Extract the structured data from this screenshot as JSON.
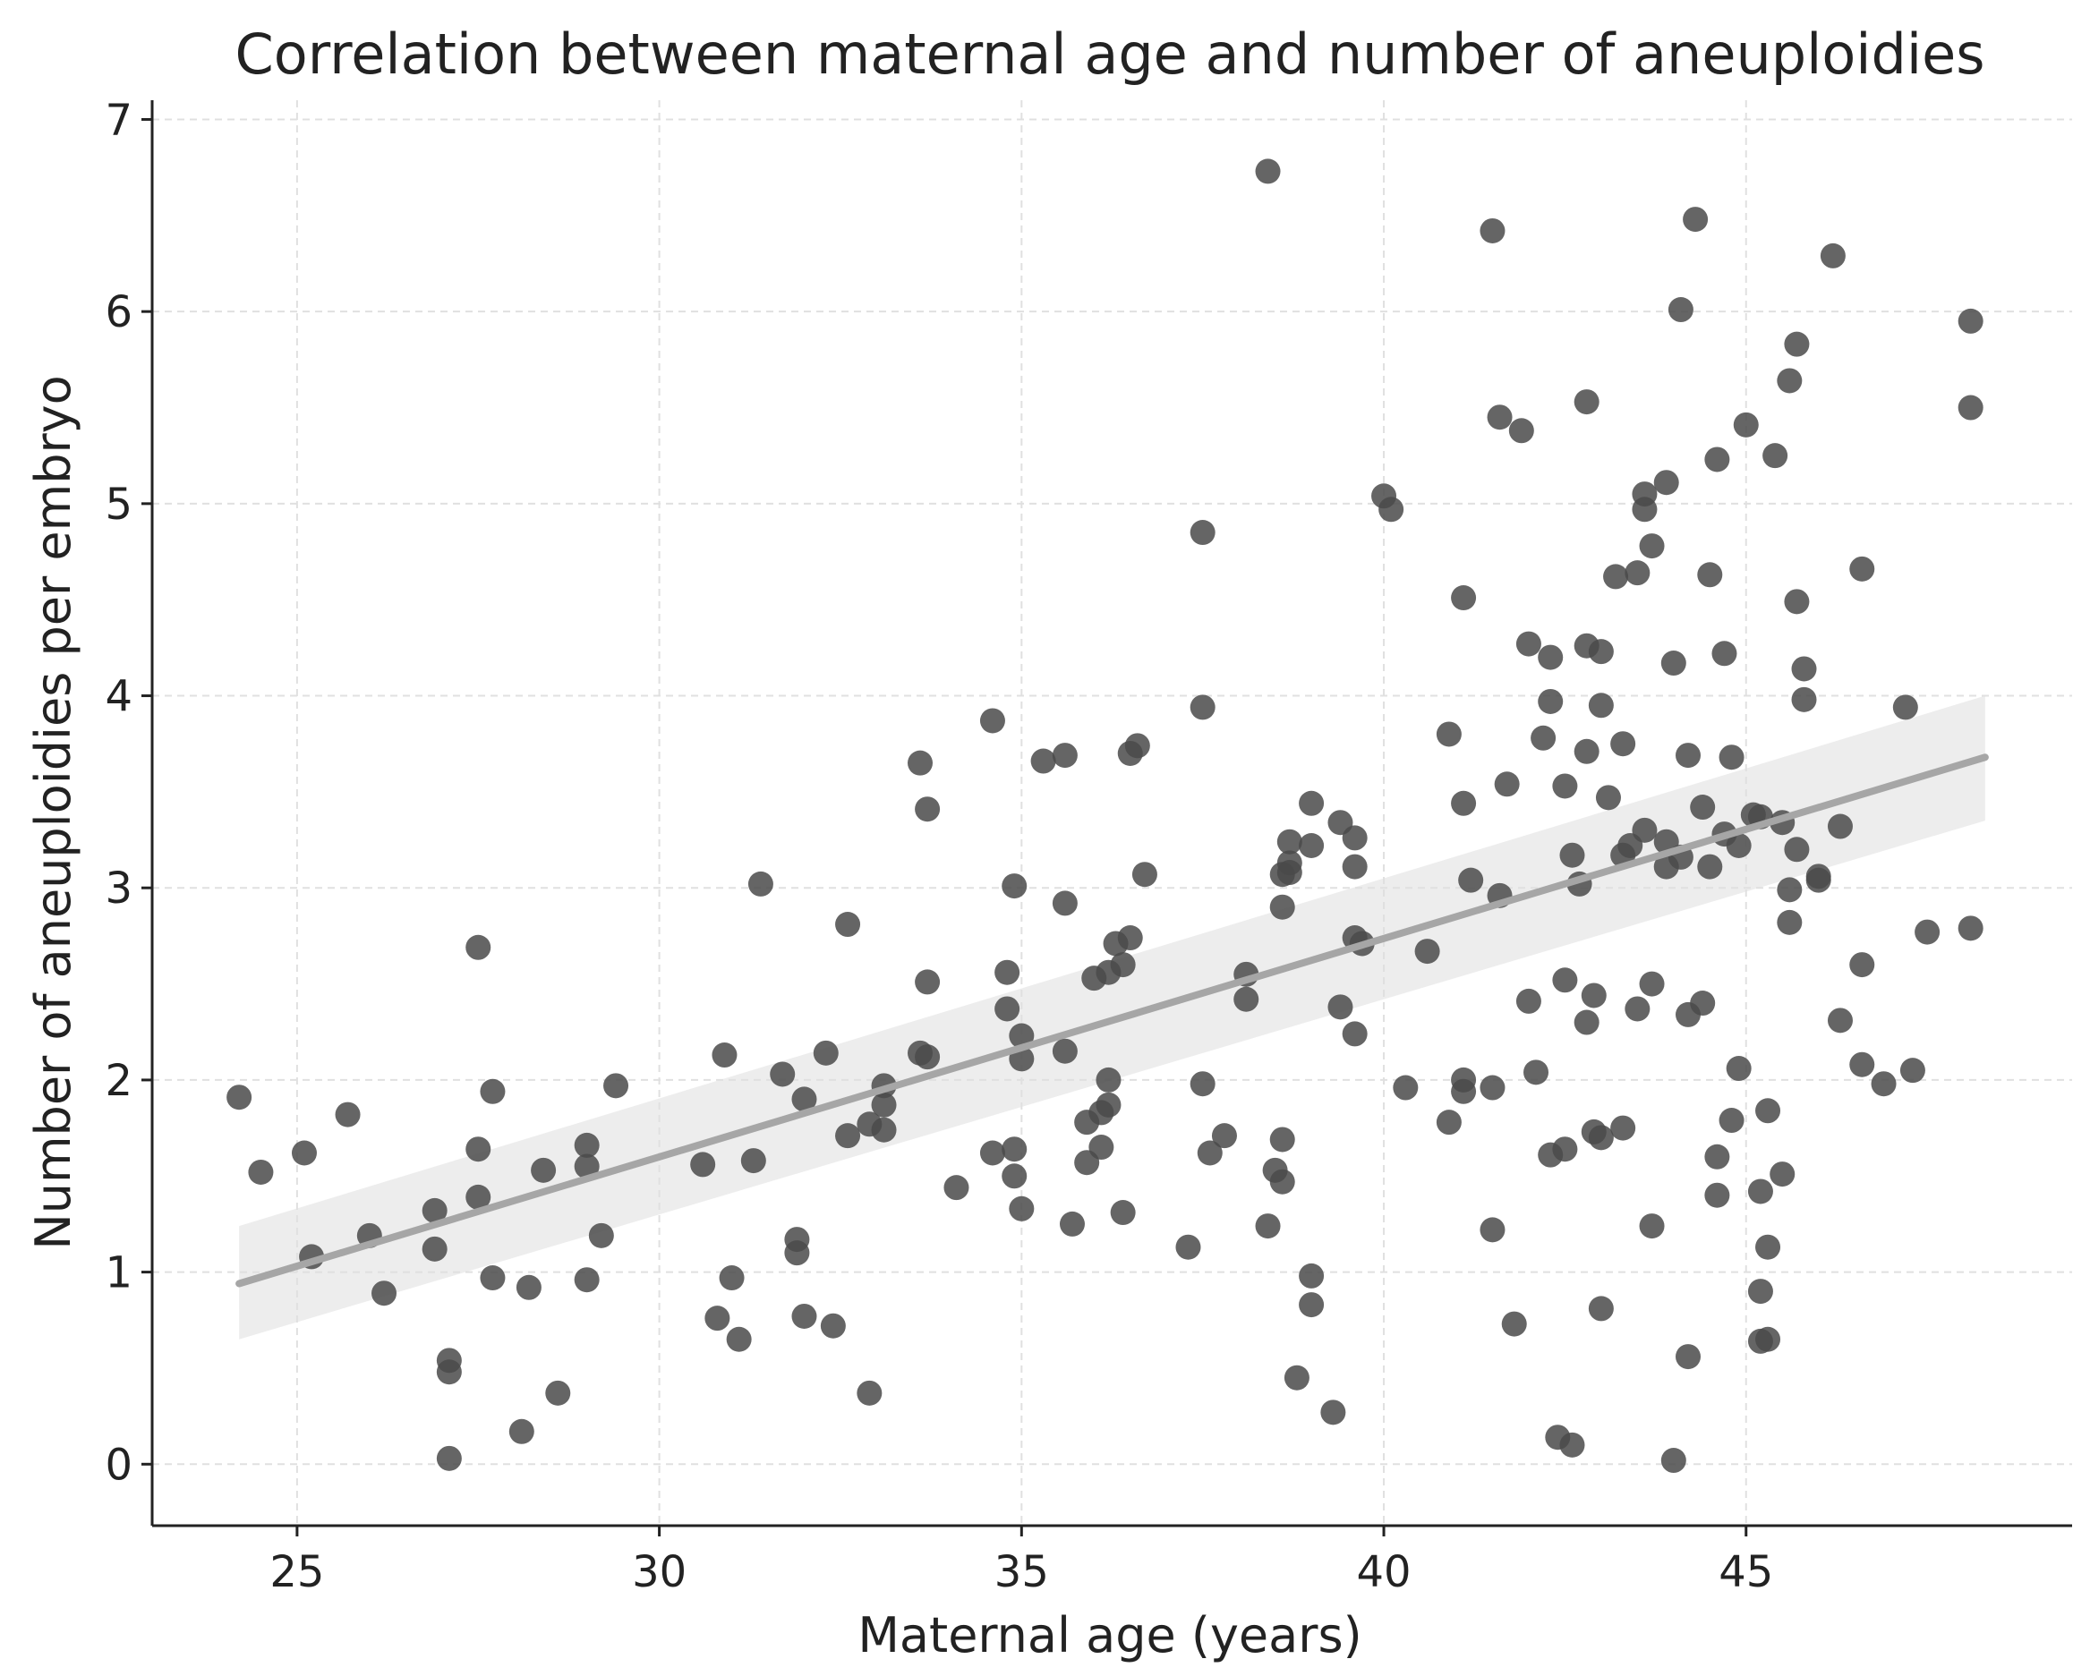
{
  "chart_data": {
    "type": "scatter",
    "title": "Correlation between maternal age and number of aneuploidies",
    "xlabel": "Maternal age (years)",
    "ylabel": "Number of aneuploidies per embryo",
    "xlim": [
      23,
      49.5
    ],
    "ylim": [
      -0.32,
      7.1
    ],
    "xticks": [
      25,
      30,
      35,
      40,
      45
    ],
    "yticks": [
      0,
      1,
      2,
      3,
      4,
      5,
      6,
      7
    ],
    "grid": true,
    "colors": {
      "points": "#4a4a4a",
      "regression_line": "#a6a6a6",
      "confidence_band": "#e6e6e6",
      "grid": "#e0e0e0",
      "axis": "#222222"
    },
    "regression": {
      "x": [
        24.2,
        48.3
      ],
      "y": [
        0.94,
        3.68
      ],
      "ci_lower": [
        0.65,
        3.35
      ],
      "ci_upper": [
        1.24,
        4.0
      ]
    },
    "points": [
      [
        24.2,
        1.91
      ],
      [
        24.5,
        1.52
      ],
      [
        25.1,
        1.62
      ],
      [
        25.2,
        1.08
      ],
      [
        25.7,
        1.82
      ],
      [
        26.0,
        1.19
      ],
      [
        26.2,
        0.89
      ],
      [
        26.9,
        1.32
      ],
      [
        26.9,
        1.12
      ],
      [
        27.1,
        0.54
      ],
      [
        27.1,
        0.48
      ],
      [
        27.1,
        0.03
      ],
      [
        27.5,
        2.69
      ],
      [
        27.5,
        1.64
      ],
      [
        27.5,
        1.39
      ],
      [
        27.7,
        1.94
      ],
      [
        27.7,
        0.97
      ],
      [
        28.2,
        0.92
      ],
      [
        28.1,
        0.17
      ],
      [
        28.4,
        1.53
      ],
      [
        28.6,
        0.37
      ],
      [
        29.0,
        1.66
      ],
      [
        29.0,
        1.55
      ],
      [
        29.0,
        0.96
      ],
      [
        29.2,
        1.19
      ],
      [
        29.4,
        1.97
      ],
      [
        30.6,
        1.56
      ],
      [
        30.8,
        0.76
      ],
      [
        30.9,
        2.13
      ],
      [
        31.0,
        0.97
      ],
      [
        31.1,
        0.65
      ],
      [
        31.3,
        1.58
      ],
      [
        31.4,
        3.02
      ],
      [
        31.7,
        2.03
      ],
      [
        31.9,
        1.17
      ],
      [
        31.9,
        1.1
      ],
      [
        32.0,
        1.9
      ],
      [
        32.0,
        0.77
      ],
      [
        32.3,
        2.14
      ],
      [
        32.4,
        0.72
      ],
      [
        32.6,
        2.81
      ],
      [
        32.6,
        1.71
      ],
      [
        32.9,
        1.77
      ],
      [
        32.9,
        0.37
      ],
      [
        33.1,
        1.97
      ],
      [
        33.1,
        1.87
      ],
      [
        33.1,
        1.74
      ],
      [
        33.6,
        3.65
      ],
      [
        33.7,
        3.41
      ],
      [
        33.7,
        2.51
      ],
      [
        33.6,
        2.14
      ],
      [
        33.7,
        2.12
      ],
      [
        34.1,
        1.44
      ],
      [
        34.6,
        3.87
      ],
      [
        34.6,
        1.62
      ],
      [
        34.8,
        2.56
      ],
      [
        34.8,
        2.37
      ],
      [
        34.9,
        3.01
      ],
      [
        34.9,
        1.64
      ],
      [
        34.9,
        1.5
      ],
      [
        35.0,
        2.23
      ],
      [
        35.0,
        2.11
      ],
      [
        35.0,
        1.33
      ],
      [
        35.3,
        3.66
      ],
      [
        35.6,
        3.69
      ],
      [
        35.6,
        2.92
      ],
      [
        35.6,
        2.15
      ],
      [
        35.7,
        1.25
      ],
      [
        35.9,
        1.78
      ],
      [
        35.9,
        1.57
      ],
      [
        36.0,
        2.53
      ],
      [
        36.1,
        1.65
      ],
      [
        36.1,
        1.83
      ],
      [
        36.2,
        1.87
      ],
      [
        36.2,
        2.0
      ],
      [
        36.2,
        2.56
      ],
      [
        36.3,
        2.71
      ],
      [
        36.4,
        2.6
      ],
      [
        36.4,
        1.31
      ],
      [
        36.5,
        2.74
      ],
      [
        36.5,
        3.7
      ],
      [
        36.6,
        3.74
      ],
      [
        36.7,
        3.07
      ],
      [
        37.3,
        1.13
      ],
      [
        37.5,
        4.85
      ],
      [
        37.5,
        3.94
      ],
      [
        37.5,
        1.98
      ],
      [
        37.6,
        1.62
      ],
      [
        37.8,
        1.71
      ],
      [
        38.1,
        2.55
      ],
      [
        38.1,
        2.42
      ],
      [
        38.4,
        1.24
      ],
      [
        38.4,
        6.73
      ],
      [
        38.5,
        1.53
      ],
      [
        38.6,
        3.07
      ],
      [
        38.6,
        2.9
      ],
      [
        38.6,
        1.69
      ],
      [
        38.6,
        1.47
      ],
      [
        38.7,
        3.13
      ],
      [
        38.7,
        3.08
      ],
      [
        38.7,
        3.24
      ],
      [
        38.8,
        0.45
      ],
      [
        39.0,
        3.22
      ],
      [
        39.0,
        3.44
      ],
      [
        39.0,
        0.83
      ],
      [
        39.0,
        0.98
      ],
      [
        39.3,
        0.27
      ],
      [
        39.4,
        3.34
      ],
      [
        39.4,
        2.38
      ],
      [
        39.6,
        2.24
      ],
      [
        39.6,
        3.11
      ],
      [
        39.6,
        3.26
      ],
      [
        39.6,
        2.74
      ],
      [
        39.7,
        2.71
      ],
      [
        40.0,
        5.04
      ],
      [
        40.1,
        4.97
      ],
      [
        40.3,
        1.96
      ],
      [
        40.6,
        2.67
      ],
      [
        40.9,
        1.78
      ],
      [
        40.9,
        3.8
      ],
      [
        41.1,
        4.51
      ],
      [
        41.1,
        3.44
      ],
      [
        41.2,
        3.04
      ],
      [
        41.1,
        2.0
      ],
      [
        41.1,
        1.94
      ],
      [
        41.5,
        6.42
      ],
      [
        41.5,
        1.96
      ],
      [
        41.5,
        1.22
      ],
      [
        41.6,
        5.45
      ],
      [
        41.6,
        2.96
      ],
      [
        41.7,
        3.54
      ],
      [
        41.8,
        0.73
      ],
      [
        41.9,
        5.38
      ],
      [
        42.0,
        4.27
      ],
      [
        42.0,
        2.41
      ],
      [
        42.1,
        2.04
      ],
      [
        42.2,
        3.78
      ],
      [
        42.3,
        4.2
      ],
      [
        42.3,
        3.97
      ],
      [
        42.3,
        1.61
      ],
      [
        42.4,
        0.14
      ],
      [
        42.5,
        3.53
      ],
      [
        42.5,
        2.52
      ],
      [
        42.5,
        1.64
      ],
      [
        42.6,
        3.17
      ],
      [
        42.6,
        0.1
      ],
      [
        42.7,
        3.02
      ],
      [
        42.8,
        5.53
      ],
      [
        42.8,
        3.71
      ],
      [
        42.8,
        2.3
      ],
      [
        42.8,
        4.26
      ],
      [
        42.9,
        2.44
      ],
      [
        42.9,
        1.73
      ],
      [
        43.0,
        4.23
      ],
      [
        43.0,
        3.95
      ],
      [
        43.0,
        1.7
      ],
      [
        43.0,
        0.81
      ],
      [
        43.1,
        3.47
      ],
      [
        43.2,
        4.62
      ],
      [
        43.3,
        3.17
      ],
      [
        43.3,
        3.75
      ],
      [
        43.3,
        1.75
      ],
      [
        43.4,
        3.22
      ],
      [
        43.5,
        4.64
      ],
      [
        43.5,
        2.37
      ],
      [
        43.6,
        5.05
      ],
      [
        43.6,
        4.97
      ],
      [
        43.6,
        3.3
      ],
      [
        43.7,
        4.78
      ],
      [
        43.7,
        2.5
      ],
      [
        43.7,
        1.24
      ],
      [
        43.9,
        5.11
      ],
      [
        43.9,
        3.24
      ],
      [
        43.9,
        3.11
      ],
      [
        44.0,
        4.17
      ],
      [
        44.0,
        0.02
      ],
      [
        44.1,
        3.16
      ],
      [
        44.1,
        6.01
      ],
      [
        44.2,
        3.69
      ],
      [
        44.2,
        2.34
      ],
      [
        44.2,
        0.56
      ],
      [
        44.3,
        6.48
      ],
      [
        44.4,
        3.42
      ],
      [
        44.4,
        2.4
      ],
      [
        44.5,
        3.11
      ],
      [
        44.5,
        4.63
      ],
      [
        44.6,
        5.23
      ],
      [
        44.6,
        1.6
      ],
      [
        44.6,
        1.4
      ],
      [
        44.7,
        4.22
      ],
      [
        44.7,
        3.28
      ],
      [
        44.8,
        3.68
      ],
      [
        44.8,
        1.79
      ],
      [
        44.9,
        3.22
      ],
      [
        44.9,
        2.06
      ],
      [
        45.0,
        5.41
      ],
      [
        45.1,
        3.38
      ],
      [
        45.2,
        3.37
      ],
      [
        45.2,
        1.42
      ],
      [
        45.2,
        0.9
      ],
      [
        45.2,
        0.64
      ],
      [
        45.3,
        0.65
      ],
      [
        45.3,
        1.13
      ],
      [
        45.3,
        1.84
      ],
      [
        45.4,
        5.25
      ],
      [
        45.5,
        1.51
      ],
      [
        45.5,
        3.34
      ],
      [
        45.6,
        5.64
      ],
      [
        45.6,
        2.99
      ],
      [
        45.6,
        2.82
      ],
      [
        45.7,
        5.83
      ],
      [
        45.7,
        3.2
      ],
      [
        45.7,
        4.49
      ],
      [
        45.8,
        4.14
      ],
      [
        45.8,
        3.98
      ],
      [
        46.0,
        3.06
      ],
      [
        46.0,
        3.04
      ],
      [
        46.2,
        6.29
      ],
      [
        46.3,
        3.32
      ],
      [
        46.3,
        2.31
      ],
      [
        46.6,
        4.66
      ],
      [
        46.6,
        2.6
      ],
      [
        46.6,
        2.08
      ],
      [
        46.9,
        1.98
      ],
      [
        47.2,
        3.94
      ],
      [
        47.3,
        2.05
      ],
      [
        47.5,
        2.77
      ],
      [
        48.1,
        5.95
      ],
      [
        48.1,
        5.5
      ],
      [
        48.1,
        2.79
      ]
    ]
  }
}
